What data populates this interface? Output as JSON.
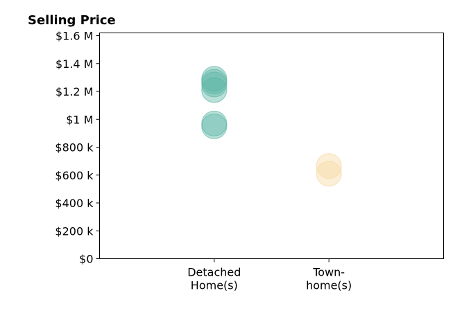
{
  "chart_data": {
    "type": "scatter",
    "title": "Selling Price",
    "xlabel": "",
    "ylabel": "",
    "categories": [
      {
        "lines": [
          "Detached",
          "Home(s)"
        ]
      },
      {
        "lines": [
          "Town-",
          "home(s)"
        ]
      }
    ],
    "xlim": [
      -1,
      2
    ],
    "ylim": [
      0,
      1620000
    ],
    "yticks": [
      {
        "value": 0,
        "label": "$0"
      },
      {
        "value": 200000,
        "label": "$200 k"
      },
      {
        "value": 400000,
        "label": "$400 k"
      },
      {
        "value": 600000,
        "label": "$600 k"
      },
      {
        "value": 800000,
        "label": "$800 k"
      },
      {
        "value": 1000000,
        "label": "$1 M"
      },
      {
        "value": 1200000,
        "label": "$1.2 M"
      },
      {
        "value": 1400000,
        "label": "$1.4 M"
      },
      {
        "value": 1600000,
        "label": "$1.6 M"
      }
    ],
    "grid": false,
    "series": [
      {
        "category_index": 0,
        "color": "#5ab4a5",
        "values": [
          1290000,
          1270000,
          1250000,
          1210000,
          970000,
          950000
        ]
      },
      {
        "category_index": 1,
        "color": "#f5d9a0",
        "values": [
          665000,
          610000
        ]
      }
    ]
  }
}
